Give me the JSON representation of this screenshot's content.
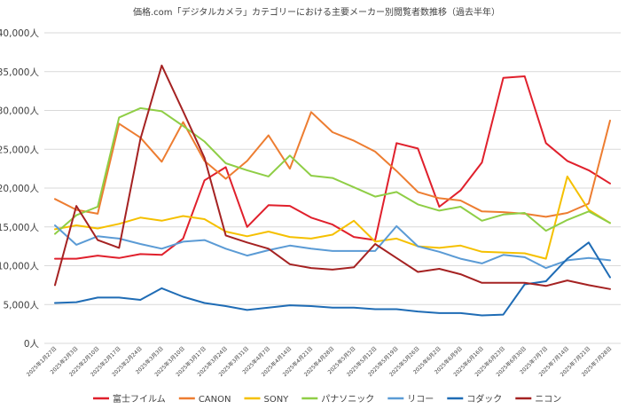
{
  "chart_data": {
    "type": "line",
    "title": "価格.com「デジタルカメラ」カテゴリーにおける主要メーカー別閲覧者数推移（過去半年）",
    "xlabel": "",
    "ylabel": "",
    "ylim": [
      0,
      40000
    ],
    "ytick_labels": [
      "0人",
      "5,000人",
      "10,000人",
      "15,000人",
      "20,000人",
      "25,000人",
      "30,000人",
      "35,000人",
      "40,000人"
    ],
    "categories": [
      "2025年1月27日",
      "2025年2月3日",
      "2025年2月10日",
      "2025年2月17日",
      "2025年2月24日",
      "2025年3月3日",
      "2025年3月10日",
      "2025年3月17日",
      "2025年3月24日",
      "2025年3月31日",
      "2025年4月7日",
      "2025年4月14日",
      "2025年4月21日",
      "2025年4月28日",
      "2025年5月5日",
      "2025年5月12日",
      "2025年5月19日",
      "2025年5月26日",
      "2025年6月2日",
      "2025年6月9日",
      "2025年6月16日",
      "2025年6月23日",
      "2025年6月30日",
      "2025年7月7日",
      "2025年7月14日",
      "2025年7月21日",
      "2025年7月28日"
    ],
    "legend_position": "bottom",
    "grid": true,
    "series": [
      {
        "name": "富士フイルム",
        "color": "#e0202c",
        "values": [
          10900,
          10900,
          11300,
          11000,
          11500,
          11400,
          13500,
          21000,
          22700,
          15000,
          17800,
          17700,
          16200,
          15300,
          13700,
          13300,
          25800,
          25100,
          17600,
          19700,
          23300,
          34200,
          34400,
          25800,
          23500,
          22300,
          20600
        ]
      },
      {
        "name": "CANON",
        "color": "#ed7d31",
        "values": [
          18600,
          17200,
          16700,
          28300,
          26500,
          23400,
          28500,
          23500,
          21200,
          23500,
          26800,
          22500,
          29800,
          27200,
          26100,
          24700,
          22200,
          19500,
          18700,
          18400,
          17000,
          16900,
          16700,
          16300,
          16800,
          18000,
          28700
        ]
      },
      {
        "name": "SONY",
        "color": "#f5c000",
        "values": [
          14700,
          15200,
          14800,
          15400,
          16200,
          15800,
          16400,
          16000,
          14400,
          13800,
          14400,
          13700,
          13500,
          14000,
          15800,
          13100,
          13500,
          12500,
          12300,
          12600,
          11800,
          11700,
          11600,
          10900,
          21500,
          17200,
          15500
        ]
      },
      {
        "name": "パナソニック",
        "color": "#8fce46",
        "values": [
          14100,
          16500,
          17600,
          29100,
          30300,
          29900,
          28000,
          26000,
          23200,
          22300,
          21500,
          24200,
          21600,
          21300,
          20100,
          18900,
          19500,
          17900,
          17100,
          17600,
          15800,
          16600,
          16800,
          14500,
          15900,
          17000,
          15500
        ]
      },
      {
        "name": "リコー",
        "color": "#5b9bd5",
        "values": [
          15200,
          12700,
          13800,
          13500,
          12800,
          12200,
          13100,
          13300,
          12200,
          11300,
          12000,
          12600,
          12200,
          11900,
          11900,
          11900,
          15100,
          12500,
          11800,
          10900,
          10300,
          11400,
          11100,
          9700,
          10700,
          11000,
          10700
        ]
      },
      {
        "name": "コダック",
        "color": "#1f6cb5",
        "values": [
          5200,
          5300,
          5900,
          5900,
          5600,
          7100,
          6000,
          5200,
          4800,
          4300,
          4600,
          4900,
          4800,
          4600,
          4600,
          4400,
          4400,
          4100,
          3900,
          3900,
          3600,
          3700,
          7600,
          8000,
          10900,
          13000,
          8500
        ]
      },
      {
        "name": "ニコン",
        "color": "#a52222",
        "values": [
          7500,
          17700,
          13300,
          12300,
          26300,
          35800,
          29900,
          23900,
          13900,
          13000,
          12200,
          10200,
          9700,
          9500,
          9800,
          12800,
          11000,
          9200,
          9600,
          8900,
          7800,
          7800,
          7800,
          7400,
          8100,
          7500,
          7000
        ]
      }
    ]
  }
}
